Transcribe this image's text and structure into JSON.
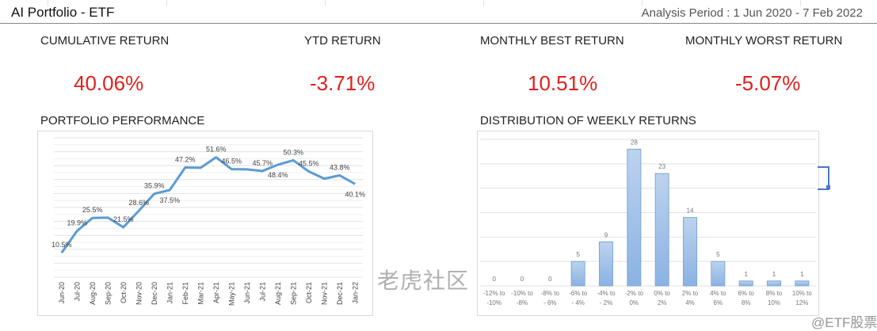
{
  "header": {
    "title": "AI Portfolio - ETF",
    "period": "Analysis Period : 1 Jun 2020 - 7 Feb 2022"
  },
  "metrics": [
    {
      "label": "CUMULATIVE RETURN",
      "value": "40.06%"
    },
    {
      "label": "YTD RETURN",
      "value": "-3.71%"
    },
    {
      "label": "MONTHLY BEST RETURN",
      "value": "10.51%"
    },
    {
      "label": "MONTHLY WORST RETURN",
      "value": "-5.07%"
    }
  ],
  "colors": {
    "negative_red": "#e0201b",
    "series_blue": "#5b9bd5",
    "selection": "#4a78c8"
  },
  "sections": {
    "performance": "PORTFOLIO PERFORMANCE",
    "distribution": "DISTRIBUTION OF WEEKLY RETURNS"
  },
  "watermark": {
    "line1": "老虎社区",
    "line2": "@ETF股票"
  },
  "chart_data": [
    {
      "type": "line",
      "categories": [
        "Jun-20",
        "Jul-20",
        "Aug-20",
        "Sep-20",
        "Oct-20",
        "Nov-20",
        "Dec-20",
        "Jan-21",
        "Feb-21",
        "Mar-21",
        "Apr-21",
        "May-21",
        "Jun-21",
        "Jul-21",
        "Aug-21",
        "Sep-21",
        "Oct-21",
        "Nov-21",
        "Dec-21",
        "Jan-22"
      ],
      "values": [
        10.5,
        19.9,
        25.5,
        25.6,
        21.5,
        28.6,
        35.9,
        37.5,
        47.2,
        47.1,
        51.6,
        46.5,
        46.4,
        45.7,
        48.4,
        50.3,
        45.5,
        42.4,
        43.8,
        40.1
      ],
      "data_labels": [
        "10.5%",
        "19.9%",
        "25.5%",
        null,
        "21.5%",
        "28.6%",
        "35.9%",
        "37.5%",
        "47.2%",
        null,
        "51.6%",
        "46.5%",
        null,
        "45.7%",
        "48.4%",
        "50.3%",
        "45.5%",
        null,
        "43.8%",
        "40.1%"
      ],
      "ylim": [
        0,
        60
      ],
      "grid": true,
      "legend": "none"
    },
    {
      "type": "bar",
      "categories": [
        "-12% to -10%",
        "-10% to -8%",
        "-8% to - 6%",
        "-6% to - 4%",
        "-4% to - 2%",
        "-2% to 0%",
        "0% to 2%",
        "2% to 4%",
        "4% to 6%",
        "6% to 8%",
        "8% to 10%",
        "10% to 12%"
      ],
      "values": [
        0,
        0,
        0,
        5,
        9,
        28,
        23,
        14,
        5,
        1,
        1,
        1
      ],
      "ylim": [
        0,
        30
      ],
      "grid": true,
      "legend": "none"
    }
  ]
}
